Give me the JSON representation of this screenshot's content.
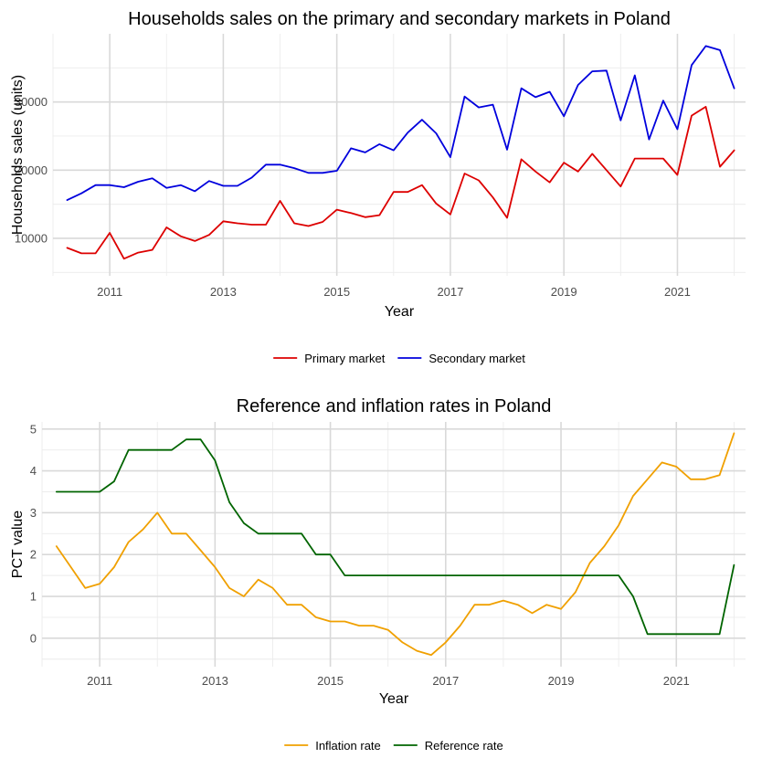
{
  "chart_data": [
    {
      "type": "line",
      "title": "Households sales on the primary and secondary markets in Poland",
      "xlabel": "Year",
      "ylabel": "Households sales (units)",
      "xlim": [
        2010.0,
        2022.2
      ],
      "ylim": [
        4500,
        40000
      ],
      "xticks": [
        2011,
        2013,
        2015,
        2017,
        2019,
        2021
      ],
      "yticks": [
        10000,
        20000,
        30000
      ],
      "ytick_labels": [
        "10000",
        "20000",
        "30000"
      ],
      "grid": true,
      "legend_position": "bottom",
      "x": [
        2010.25,
        2010.5,
        2010.75,
        2011.0,
        2011.25,
        2011.5,
        2011.75,
        2012.0,
        2012.25,
        2012.5,
        2012.75,
        2013.0,
        2013.25,
        2013.5,
        2013.75,
        2014.0,
        2014.25,
        2014.5,
        2014.75,
        2015.0,
        2015.25,
        2015.5,
        2015.75,
        2016.0,
        2016.25,
        2016.5,
        2016.75,
        2017.0,
        2017.25,
        2017.5,
        2017.75,
        2018.0,
        2018.25,
        2018.5,
        2018.75,
        2019.0,
        2019.25,
        2019.5,
        2019.75,
        2020.0,
        2020.25,
        2020.5,
        2020.75,
        2021.0,
        2021.25,
        2021.5,
        2021.75,
        2022.0
      ],
      "series": [
        {
          "name": "Primary market",
          "color": "#dd0000",
          "values": [
            8600,
            7800,
            7800,
            10800,
            7000,
            7900,
            8300,
            11600,
            10300,
            9600,
            10500,
            12500,
            12200,
            12000,
            12000,
            15500,
            12200,
            11800,
            12400,
            14200,
            13700,
            13100,
            13400,
            16800,
            16800,
            17800,
            15100,
            13500,
            19500,
            18500,
            16000,
            13000,
            21600,
            19800,
            18200,
            21100,
            19800,
            22400,
            20000,
            17600,
            21700,
            21700,
            21700,
            19300,
            28000,
            29300,
            20500,
            22900
          ]
        },
        {
          "name": "Secondary market",
          "color": "#0000dd",
          "values": [
            15600,
            16600,
            17800,
            17800,
            17500,
            18300,
            18800,
            17400,
            17800,
            16900,
            18400,
            17700,
            17700,
            18900,
            20800,
            20800,
            20300,
            19600,
            19600,
            19900,
            23200,
            22600,
            23800,
            22900,
            25500,
            27400,
            25400,
            21900,
            30800,
            29200,
            29600,
            23000,
            32000,
            30700,
            31500,
            27900,
            32500,
            34500,
            34600,
            27300,
            33900,
            24500,
            30200,
            26000,
            35400,
            38200,
            37600,
            32000
          ]
        }
      ]
    },
    {
      "type": "line",
      "title": "Reference and inflation rates in Poland",
      "xlabel": "Year",
      "ylabel": "PCT value",
      "xlim": [
        2010.0,
        2022.2
      ],
      "ylim": [
        -0.68,
        5.17
      ],
      "xticks": [
        2011,
        2013,
        2015,
        2017,
        2019,
        2021
      ],
      "yticks": [
        0,
        1,
        2,
        3,
        4,
        5
      ],
      "ytick_labels": [
        "0",
        "1",
        "2",
        "3",
        "4",
        "5"
      ],
      "grid": true,
      "legend_position": "bottom",
      "x": [
        2010.25,
        2010.5,
        2010.75,
        2011.0,
        2011.25,
        2011.5,
        2011.75,
        2012.0,
        2012.25,
        2012.5,
        2012.75,
        2013.0,
        2013.25,
        2013.5,
        2013.75,
        2014.0,
        2014.25,
        2014.5,
        2014.75,
        2015.0,
        2015.25,
        2015.5,
        2015.75,
        2016.0,
        2016.25,
        2016.5,
        2016.75,
        2017.0,
        2017.25,
        2017.5,
        2017.75,
        2018.0,
        2018.25,
        2018.5,
        2018.75,
        2019.0,
        2019.25,
        2019.5,
        2019.75,
        2020.0,
        2020.25,
        2020.5,
        2020.75,
        2021.0,
        2021.25,
        2021.5,
        2021.75,
        2022.0
      ],
      "series": [
        {
          "name": "Inflation rate",
          "color": "#f0a000",
          "values": [
            2.2,
            1.7,
            1.2,
            1.3,
            1.7,
            2.3,
            2.6,
            3.0,
            2.5,
            2.5,
            2.1,
            1.7,
            1.2,
            1.0,
            1.4,
            1.2,
            0.8,
            0.8,
            0.5,
            0.4,
            0.4,
            0.3,
            0.3,
            0.2,
            -0.1,
            -0.3,
            -0.4,
            -0.1,
            0.3,
            0.8,
            0.8,
            0.9,
            0.8,
            0.6,
            0.8,
            0.7,
            1.1,
            1.8,
            2.2,
            2.7,
            3.4,
            3.8,
            4.2,
            4.1,
            3.8,
            3.8,
            3.9,
            4.9
          ]
        },
        {
          "name": "Reference rate",
          "color": "#006400",
          "values": [
            3.5,
            3.5,
            3.5,
            3.5,
            3.75,
            4.5,
            4.5,
            4.5,
            4.5,
            4.75,
            4.75,
            4.25,
            3.25,
            2.75,
            2.5,
            2.5,
            2.5,
            2.5,
            2.0,
            2.0,
            1.5,
            1.5,
            1.5,
            1.5,
            1.5,
            1.5,
            1.5,
            1.5,
            1.5,
            1.5,
            1.5,
            1.5,
            1.5,
            1.5,
            1.5,
            1.5,
            1.5,
            1.5,
            1.5,
            1.5,
            1.0,
            0.1,
            0.1,
            0.1,
            0.1,
            0.1,
            0.1,
            1.75
          ]
        }
      ]
    }
  ]
}
